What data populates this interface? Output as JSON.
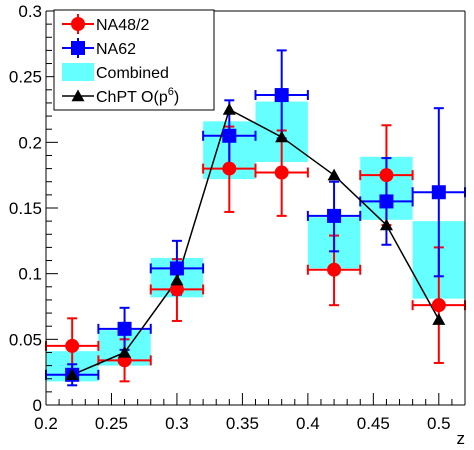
{
  "chart_data": {
    "type": "scatter",
    "xlabel": "z",
    "ylabel": "",
    "xlim": [
      0.2,
      0.52
    ],
    "ylim": [
      0,
      0.3
    ],
    "x_ticks": [
      "0.2",
      "0.25",
      "0.3",
      "0.35",
      "0.4",
      "0.45",
      "0.5"
    ],
    "y_ticks": [
      "0",
      "0.05",
      "0.1",
      "0.15",
      "0.2",
      "0.25",
      "0.3"
    ],
    "grid": false,
    "legend_position": "top-left",
    "series": [
      {
        "name": "NA48/2",
        "style": "points-errorbars",
        "marker": "circle",
        "color": "#ff0000",
        "points": [
          {
            "x": 0.22,
            "y": 0.045,
            "xerr": 0.02,
            "ylo": 0.025,
            "yhi": 0.066
          },
          {
            "x": 0.26,
            "y": 0.034,
            "xerr": 0.02,
            "ylo": 0.018,
            "yhi": 0.05
          },
          {
            "x": 0.3,
            "y": 0.088,
            "xerr": 0.02,
            "ylo": 0.064,
            "yhi": 0.111
          },
          {
            "x": 0.34,
            "y": 0.18,
            "xerr": 0.02,
            "ylo": 0.147,
            "yhi": 0.212
          },
          {
            "x": 0.38,
            "y": 0.177,
            "xerr": 0.02,
            "ylo": 0.144,
            "yhi": 0.209
          },
          {
            "x": 0.42,
            "y": 0.103,
            "xerr": 0.02,
            "ylo": 0.076,
            "yhi": 0.129
          },
          {
            "x": 0.46,
            "y": 0.175,
            "xerr": 0.02,
            "ylo": 0.137,
            "yhi": 0.213
          },
          {
            "x": 0.5,
            "y": 0.076,
            "xerr": 0.02,
            "ylo": 0.032,
            "yhi": 0.12
          }
        ]
      },
      {
        "name": "NA62",
        "style": "points-errorbars",
        "marker": "square",
        "color": "#0000ff",
        "points": [
          {
            "x": 0.22,
            "y": 0.023,
            "xerr": 0.02,
            "ylo": 0.015,
            "yhi": 0.031
          },
          {
            "x": 0.26,
            "y": 0.058,
            "xerr": 0.02,
            "ylo": 0.042,
            "yhi": 0.074
          },
          {
            "x": 0.3,
            "y": 0.104,
            "xerr": 0.02,
            "ylo": 0.084,
            "yhi": 0.125
          },
          {
            "x": 0.34,
            "y": 0.205,
            "xerr": 0.02,
            "ylo": 0.178,
            "yhi": 0.232
          },
          {
            "x": 0.38,
            "y": 0.236,
            "xerr": 0.02,
            "ylo": 0.203,
            "yhi": 0.27
          },
          {
            "x": 0.42,
            "y": 0.144,
            "xerr": 0.02,
            "ylo": 0.117,
            "yhi": 0.17
          },
          {
            "x": 0.46,
            "y": 0.155,
            "xerr": 0.02,
            "ylo": 0.122,
            "yhi": 0.188
          },
          {
            "x": 0.5,
            "y": 0.162,
            "xerr": 0.02,
            "ylo": 0.098,
            "yhi": 0.226
          }
        ]
      },
      {
        "name": "Combined",
        "style": "boxes",
        "color": "#66ffff",
        "points": [
          {
            "x": 0.22,
            "xerr": 0.02,
            "ylo": 0.018,
            "yhi": 0.041
          },
          {
            "x": 0.26,
            "xerr": 0.02,
            "ylo": 0.03,
            "yhi": 0.057
          },
          {
            "x": 0.3,
            "xerr": 0.02,
            "ylo": 0.082,
            "yhi": 0.112
          },
          {
            "x": 0.34,
            "xerr": 0.02,
            "ylo": 0.172,
            "yhi": 0.216
          },
          {
            "x": 0.38,
            "xerr": 0.02,
            "ylo": 0.185,
            "yhi": 0.231
          },
          {
            "x": 0.42,
            "xerr": 0.02,
            "ylo": 0.104,
            "yhi": 0.143
          },
          {
            "x": 0.46,
            "xerr": 0.02,
            "ylo": 0.141,
            "yhi": 0.189
          },
          {
            "x": 0.5,
            "xerr": 0.02,
            "ylo": 0.081,
            "yhi": 0.14
          }
        ]
      },
      {
        "name": "ChPT O(p",
        "name_superscript": "6",
        "name_suffix": ")",
        "style": "line-markers",
        "marker": "triangle",
        "color": "#000000",
        "points": [
          {
            "x": 0.22,
            "y": 0.023
          },
          {
            "x": 0.26,
            "y": 0.04
          },
          {
            "x": 0.3,
            "y": 0.095
          },
          {
            "x": 0.34,
            "y": 0.225
          },
          {
            "x": 0.38,
            "y": 0.204
          },
          {
            "x": 0.42,
            "y": 0.175
          },
          {
            "x": 0.46,
            "y": 0.137
          },
          {
            "x": 0.5,
            "y": 0.065
          }
        ]
      }
    ]
  }
}
